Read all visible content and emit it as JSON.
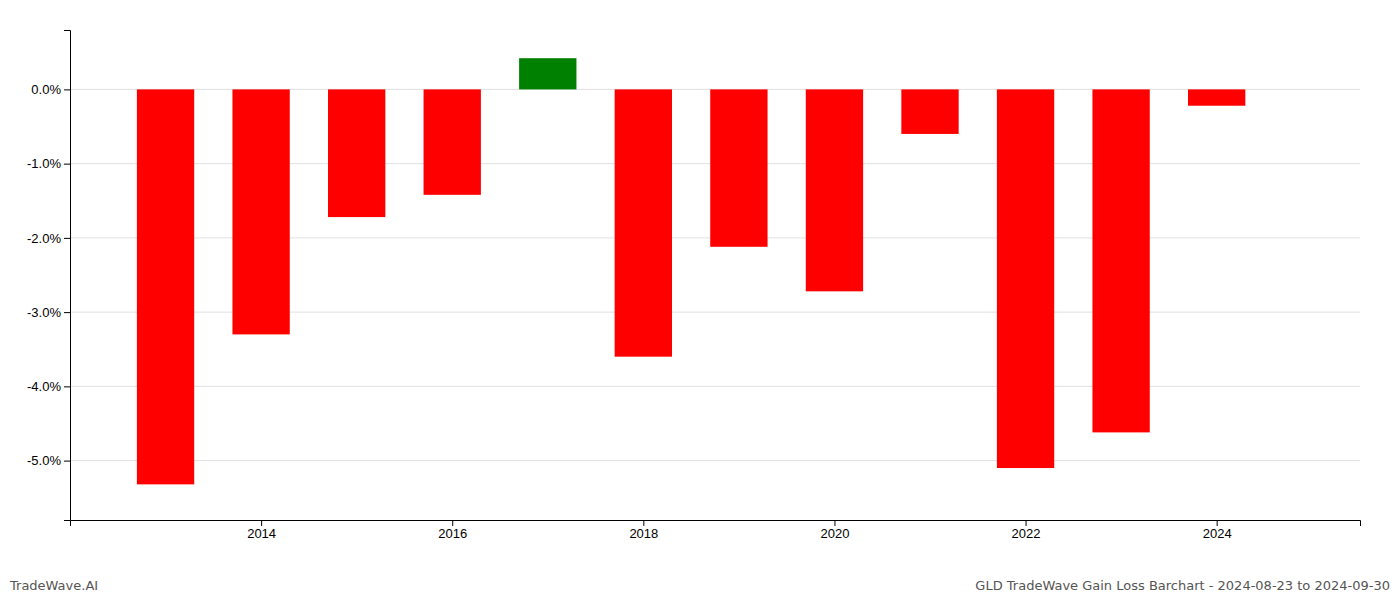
{
  "chart_data": {
    "type": "bar",
    "x": [
      2013,
      2014,
      2015,
      2016,
      2017,
      2018,
      2019,
      2020,
      2021,
      2022,
      2023,
      2024
    ],
    "values": [
      -0.0532,
      -0.033,
      -0.0172,
      -0.0142,
      0.0042,
      -0.036,
      -0.0212,
      -0.0272,
      -0.006,
      -0.051,
      -0.0462,
      -0.0022
    ],
    "colors": [
      "red",
      "red",
      "red",
      "red",
      "green",
      "red",
      "red",
      "red",
      "red",
      "red",
      "red",
      "red"
    ],
    "xlim": [
      2012,
      2025.5
    ],
    "xticks": [
      2014,
      2016,
      2018,
      2020,
      2022,
      2024
    ],
    "ylim": [
      -0.058,
      0.008
    ],
    "yticks": [
      {
        "value": 0,
        "label": "0.0%"
      },
      {
        "value": -0.01,
        "label": "-1.0%"
      },
      {
        "value": -0.02,
        "label": "-2.0%"
      },
      {
        "value": -0.03,
        "label": "-3.0%"
      },
      {
        "value": -0.04,
        "label": "-4.0%"
      },
      {
        "value": -0.05,
        "label": "-5.0%"
      }
    ],
    "grid": true,
    "annotations": [
      "TradeWave.AI",
      "GLD TradeWave Gain Loss Barchart - 2024-08-23 to 2024-09-30"
    ]
  }
}
